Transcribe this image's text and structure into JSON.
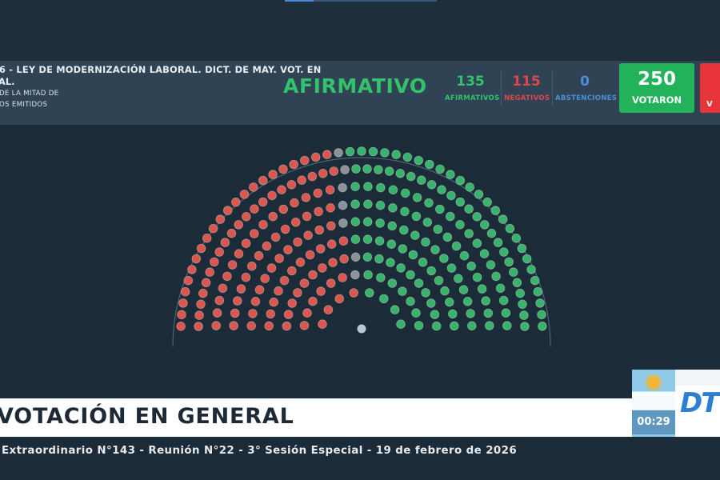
{
  "vote": {
    "title": "6 - LEY DE MODERNIZACIÓN LABORAL. DICT. DE MAY. VOT. EN",
    "title_cont": "AL.",
    "subtitle_1": "DE LA MITAD DE",
    "subtitle_2": "OS EMITIDOS",
    "result": "AFIRMATIVO",
    "afirmativos": {
      "value": "135",
      "label": "AFIRMATIVOS",
      "color": "#33c26a"
    },
    "negativos": {
      "value": "115",
      "label": "NEGATIVOS",
      "color": "#e0454a"
    },
    "abstenciones": {
      "value": "0",
      "label": "ABSTENCIONES",
      "color": "#4d8fd6"
    },
    "votaron": {
      "value": "250",
      "label": "VOTARON"
    },
    "red_box_label": "V"
  },
  "chamber": {
    "seats_yes": 135,
    "seats_no": 115,
    "seats_absent": 7,
    "colors": {
      "yes": "#39b36b",
      "no": "#d9574f",
      "absent": "#8c9299",
      "president": "#b8c8d8",
      "arc": "#4b6478"
    }
  },
  "banner": {
    "title": "VOTACIÓN EN GENERAL",
    "info": "Extraordinario N°143 - Reunión N°22 - 3° Sesión Especial - 19 de febrero de 2026",
    "clock": "00:29",
    "logo": "DTV"
  }
}
